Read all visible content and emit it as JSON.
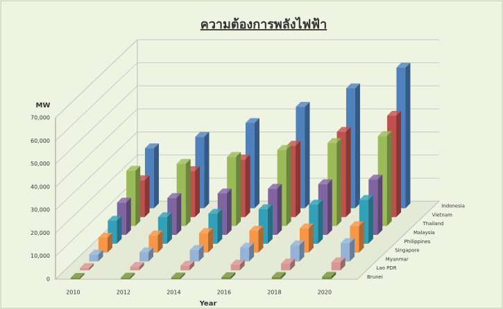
{
  "chart_data": {
    "type": "bar3d",
    "title": "ความต้องการพลังไฟฟ้า",
    "y_label": "MW",
    "x_label": "Year",
    "categories": [
      "2010",
      "2012",
      "2014",
      "2016",
      "2018",
      "2020"
    ],
    "series": [
      {
        "name": "Brunei",
        "color": "#77933c",
        "values": [
          600,
          700,
          800,
          900,
          1000,
          1100
        ]
      },
      {
        "name": "Lao PDR",
        "color": "#d99694",
        "values": [
          1000,
          1500,
          2000,
          2500,
          3000,
          3500
        ]
      },
      {
        "name": "Myanmar",
        "color": "#95b3d7",
        "values": [
          3000,
          4000,
          5000,
          6000,
          7000,
          8000
        ]
      },
      {
        "name": "Singapore",
        "color": "#f79646",
        "values": [
          6500,
          7500,
          8500,
          9500,
          10500,
          11500
        ]
      },
      {
        "name": "Philippines",
        "color": "#31a0b8",
        "values": [
          10000,
          11500,
          13000,
          15000,
          17000,
          19000
        ]
      },
      {
        "name": "Malaysia",
        "color": "#8064a2",
        "values": [
          14000,
          16000,
          18000,
          20000,
          22000,
          24000
        ]
      },
      {
        "name": "Thailand",
        "color": "#9bbb59",
        "values": [
          24000,
          27000,
          30000,
          33000,
          36000,
          39000
        ]
      },
      {
        "name": "Vietnam",
        "color": "#c0504d",
        "values": [
          16000,
          20000,
          25000,
          31000,
          37000,
          44000
        ]
      },
      {
        "name": "Indonesia",
        "color": "#4f81bd",
        "values": [
          26000,
          31000,
          37000,
          44000,
          52000,
          61000
        ]
      }
    ],
    "ylim": [
      0,
      70000
    ],
    "yticks": [
      0,
      {
        "value": 10000,
        "label": "10,000"
      },
      {
        "value": 20000,
        "label": "20,000"
      },
      {
        "value": 30000,
        "label": "30,000"
      },
      {
        "value": 40000,
        "label": "40,000"
      },
      {
        "value": 50000,
        "label": "50,000"
      },
      {
        "value": 60000,
        "label": "60,000"
      },
      {
        "value": 70000,
        "label": "70,000"
      }
    ],
    "grid": true
  }
}
